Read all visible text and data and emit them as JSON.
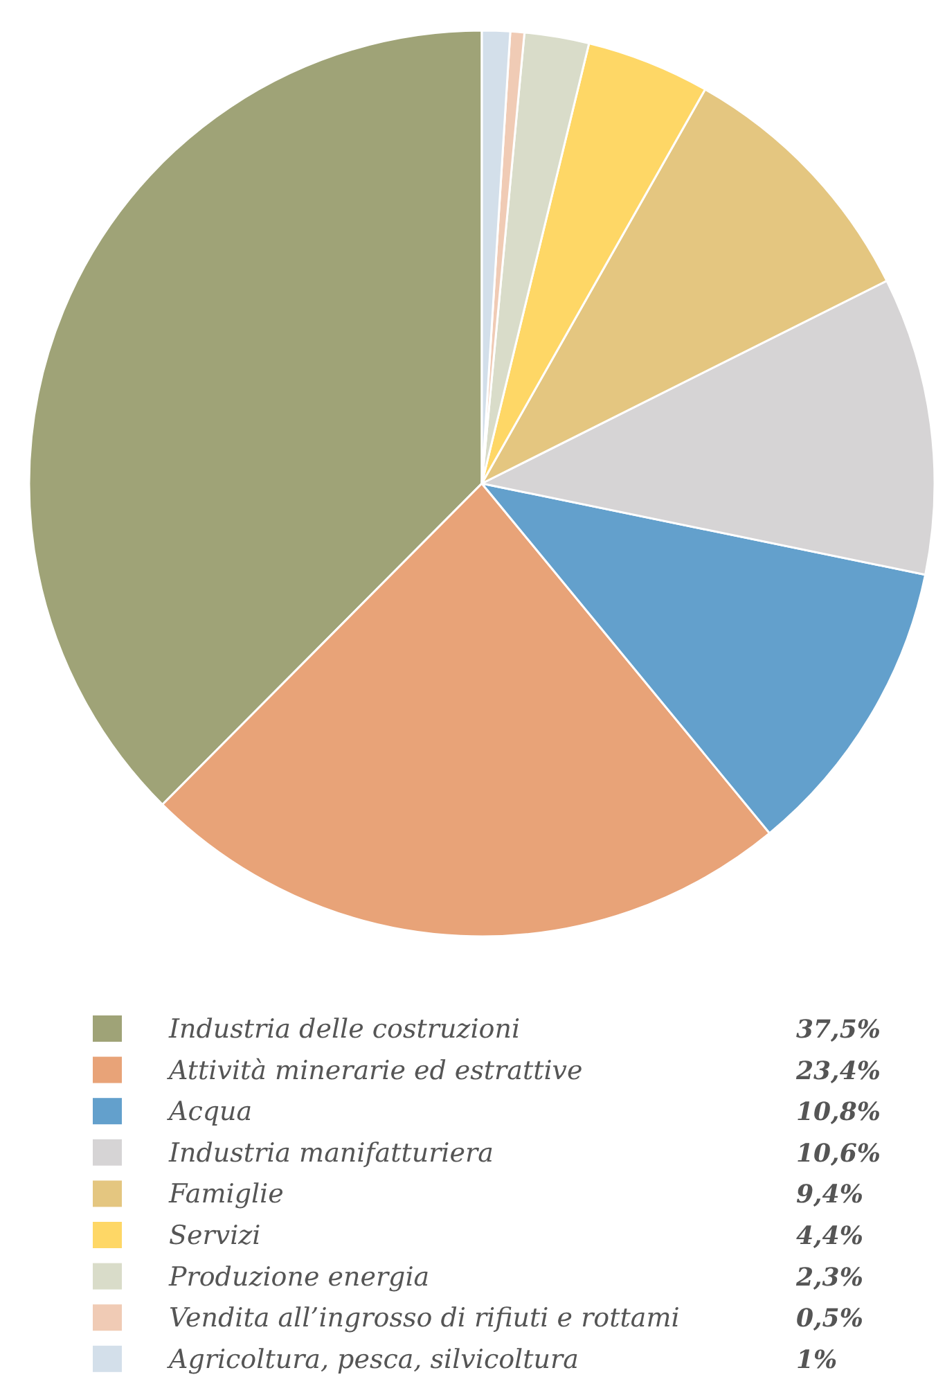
{
  "chart_data": {
    "type": "pie",
    "categories": [
      "Industria delle costruzioni",
      "Attività minerarie ed estrattive",
      "Acqua",
      "Industria manifatturiera",
      "Famiglie",
      "Servizi",
      "Produzione energia",
      "Vendita all’ingrosso di rifiuti e rottami",
      "Agricoltura, pesca, silvicoltura"
    ],
    "values": [
      37.5,
      23.4,
      10.8,
      10.6,
      9.4,
      4.4,
      2.3,
      0.5,
      1
    ],
    "colors": [
      "#9fa377",
      "#e8a378",
      "#63a0cc",
      "#d6d4d5",
      "#e4c680",
      "#fed766",
      "#d9dcc9",
      "#f0cbb5",
      "#d3dfea"
    ],
    "value_labels": [
      "37,5%",
      "23,4%",
      "10,8%",
      "10,6%",
      "9,4%",
      "4,4%",
      "2,3%",
      "0,5%",
      "1%"
    ],
    "legend": "bottom"
  }
}
